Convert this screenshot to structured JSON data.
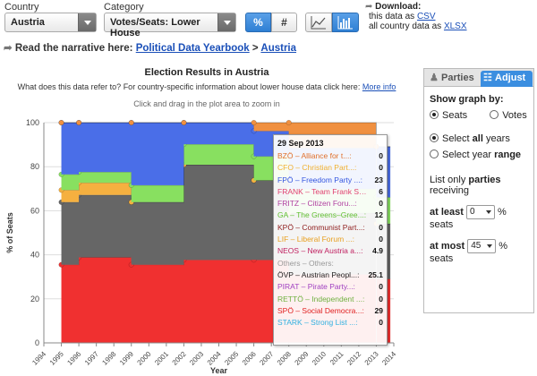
{
  "controls": {
    "country_label": "Country",
    "country_value": "Austria",
    "category_label": "Category",
    "category_value": "Votes/Seats: Lower House",
    "pct_btn": "%",
    "abs_btn": "#",
    "download_label": "Download:",
    "download_line1_prefix": "this data as",
    "download_line1_link": "CSV",
    "download_line2_prefix": "all country data as",
    "download_line2_link": "XLSX"
  },
  "narrative": {
    "prefix": "Read the narrative here:",
    "link1": "Political Data Yearbook",
    "sep": ">",
    "link2": "Austria"
  },
  "chart_header": {
    "title": "Election Results in Austria",
    "subtitle": "What does this data refer to? For country-specific information about lower house data click here:",
    "subtitle_link": "More info",
    "hint": "Click and drag in the plot area to zoom in"
  },
  "tooltip": {
    "date": "29 Sep 2013",
    "rows": [
      {
        "name": "BZÖ – Alliance for t...:",
        "value": "0",
        "color": "#e0702a"
      },
      {
        "name": "CFO – Christian Part...:",
        "value": "0",
        "color": "#f0b030"
      },
      {
        "name": "FPÖ – Freedom Party ...:",
        "value": "23",
        "color": "#3355e0"
      },
      {
        "name": "FRANK – Team Frank S...:",
        "value": "6",
        "color": "#e04070"
      },
      {
        "name": "FRITZ – Citizen Foru...:",
        "value": "0",
        "color": "#b040a0"
      },
      {
        "name": "GA – The Greens–Gree...:",
        "value": "12",
        "color": "#60c030"
      },
      {
        "name": "KPÖ – Communist Part...:",
        "value": "0",
        "color": "#902020"
      },
      {
        "name": "LIF – Liberal Forum ...:",
        "value": "0",
        "color": "#e8a020"
      },
      {
        "name": "NEOS – New Austria a...:",
        "value": "4.9",
        "color": "#c02060"
      },
      {
        "name": "Others – Others:",
        "value": "",
        "color": "#999999"
      },
      {
        "name": "ÖVP – Austrian Peopl...:",
        "value": "25.1",
        "color": "#222222"
      },
      {
        "name": "PIRAT – Pirate Party...:",
        "value": "0",
        "color": "#a040c0"
      },
      {
        "name": "RETTÖ – Independent ...:",
        "value": "0",
        "color": "#70b040"
      },
      {
        "name": "SPÖ – Social Democra...:",
        "value": "29",
        "color": "#e02020"
      },
      {
        "name": "STARK – Strong List ...:",
        "value": "0",
        "color": "#30b0e0"
      }
    ]
  },
  "panel": {
    "tab_parties": "Parties",
    "tab_adjust": "Adjust",
    "show_graph_by": "Show graph by:",
    "opt_seats": "Seats",
    "opt_votes": "Votes",
    "select_all_prefix": "Select",
    "select_all_bold": "all",
    "select_all_suffix": "years",
    "select_range_prefix": "Select year",
    "select_range_bold": "range",
    "list_only_prefix": "List only",
    "list_only_bold": "parties",
    "list_only_suffix": "receiving",
    "at_least_label": "at least",
    "at_least_value": "0",
    "at_most_label": "at most",
    "at_most_value": "45",
    "pct_seats": "% seats"
  },
  "chart_data": {
    "type": "area",
    "title": "Election Results in Austria",
    "xlabel": "Year",
    "ylabel": "% of Seats",
    "ylim": [
      0,
      100
    ],
    "xlim": [
      1994,
      2014
    ],
    "y_ticks": [
      0,
      20,
      40,
      60,
      80,
      100
    ],
    "x_ticks": [
      "1994",
      "1995",
      "1996",
      "1997",
      "1998",
      "1999",
      "2000",
      "2001",
      "2002",
      "2003",
      "2004",
      "2005",
      "2006",
      "2007",
      "2008",
      "2009",
      "2010",
      "2011",
      "2012",
      "2013",
      "2014"
    ],
    "election_years": [
      1995,
      1996,
      1999,
      2002,
      2006,
      2008,
      2013
    ],
    "series": [
      {
        "name": "SPÖ",
        "color": "#f03030",
        "values": [
          35.5,
          38.8,
          35.5,
          37.7,
          37.7,
          31.1,
          29
        ]
      },
      {
        "name": "ÖVP",
        "color": "#666666",
        "values": [
          28.4,
          28.4,
          28.4,
          43.2,
          36.1,
          27.9,
          25.1
        ]
      },
      {
        "name": "LIF",
        "color": "#f5b040",
        "values": [
          5.5,
          5.5,
          0,
          0,
          0,
          0,
          0
        ]
      },
      {
        "name": "GA",
        "color": "#88e060",
        "values": [
          7.1,
          4.9,
          7.7,
          9.3,
          10.9,
          10.9,
          12
        ]
      },
      {
        "name": "FPÖ",
        "color": "#4a6ee8",
        "values": [
          23.5,
          22.4,
          28.4,
          9.8,
          11.5,
          18.6,
          23
        ]
      },
      {
        "name": "BZÖ",
        "color": "#f09040",
        "values": [
          0,
          0,
          0,
          0,
          3.8,
          11.5,
          0
        ]
      }
    ]
  }
}
